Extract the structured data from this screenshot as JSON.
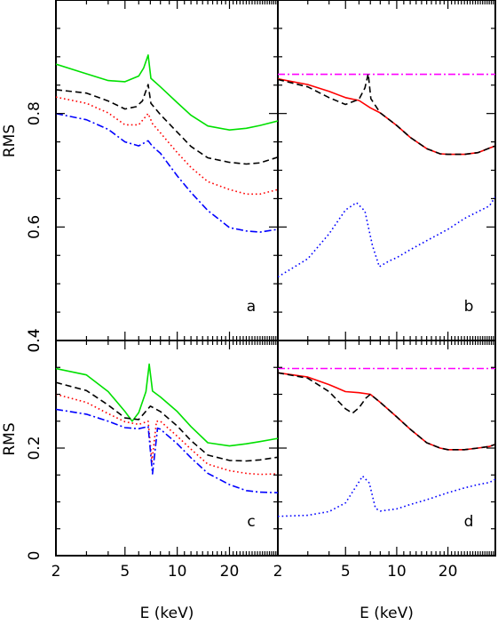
{
  "chart_data": [
    {
      "panel": "a",
      "type": "line",
      "ylabel": "RMS",
      "xlabel": "",
      "xscale": "log",
      "xlim": [
        2,
        38
      ],
      "ylim": [
        0.4,
        1.0
      ],
      "ytick_values": [
        0.4,
        0.6,
        0.8
      ],
      "ytick_labels": [
        "0.4",
        "0.6",
        "0.8"
      ],
      "xtick_labels": [],
      "series": [
        {
          "color": "#00e000",
          "style": "solid",
          "points": [
            [
              2,
              0.887
            ],
            [
              3,
              0.87
            ],
            [
              4,
              0.858
            ],
            [
              5,
              0.856
            ],
            [
              6,
              0.866
            ],
            [
              6.4,
              0.88
            ],
            [
              6.8,
              0.903
            ],
            [
              7.05,
              0.862
            ],
            [
              8,
              0.847
            ],
            [
              10,
              0.819
            ],
            [
              12,
              0.797
            ],
            [
              15,
              0.778
            ],
            [
              20,
              0.771
            ],
            [
              25,
              0.774
            ],
            [
              30,
              0.779
            ],
            [
              38,
              0.787
            ]
          ]
        },
        {
          "color": "#000000",
          "style": "dashed",
          "points": [
            [
              2,
              0.842
            ],
            [
              3,
              0.836
            ],
            [
              4,
              0.822
            ],
            [
              5,
              0.808
            ],
            [
              5.8,
              0.812
            ],
            [
              6.3,
              0.822
            ],
            [
              6.8,
              0.851
            ],
            [
              7.05,
              0.818
            ],
            [
              8,
              0.798
            ],
            [
              10,
              0.767
            ],
            [
              12,
              0.742
            ],
            [
              15,
              0.722
            ],
            [
              20,
              0.714
            ],
            [
              25,
              0.711
            ],
            [
              30,
              0.713
            ],
            [
              38,
              0.723
            ]
          ]
        },
        {
          "color": "#ff0000",
          "style": "dotted",
          "points": [
            [
              2,
              0.829
            ],
            [
              3,
              0.818
            ],
            [
              4,
              0.801
            ],
            [
              5,
              0.78
            ],
            [
              6,
              0.78
            ],
            [
              6.8,
              0.8
            ],
            [
              7.2,
              0.782
            ],
            [
              8,
              0.766
            ],
            [
              10,
              0.731
            ],
            [
              12,
              0.705
            ],
            [
              15,
              0.68
            ],
            [
              20,
              0.666
            ],
            [
              25,
              0.658
            ],
            [
              30,
              0.658
            ],
            [
              38,
              0.666
            ]
          ]
        },
        {
          "color": "#0000ff",
          "style": "dashdot",
          "points": [
            [
              2,
              0.8
            ],
            [
              3,
              0.789
            ],
            [
              4,
              0.772
            ],
            [
              5,
              0.75
            ],
            [
              6,
              0.743
            ],
            [
              6.8,
              0.752
            ],
            [
              7.2,
              0.742
            ],
            [
              8,
              0.73
            ],
            [
              10,
              0.69
            ],
            [
              12,
              0.661
            ],
            [
              15,
              0.629
            ],
            [
              20,
              0.599
            ],
            [
              25,
              0.593
            ],
            [
              30,
              0.591
            ],
            [
              38,
              0.596
            ]
          ]
        }
      ]
    },
    {
      "panel": "b",
      "type": "line",
      "ylabel": "",
      "xlabel": "",
      "xscale": "log",
      "xlim": [
        2,
        38
      ],
      "ylim": [
        0.4,
        1.0
      ],
      "ytick_labels": [],
      "xtick_labels": [],
      "series": [
        {
          "color": "#ff00ff",
          "style": "dashdot",
          "points": [
            [
              2,
              0.869
            ],
            [
              38,
              0.869
            ]
          ]
        },
        {
          "color": "#ff0000",
          "style": "solid",
          "points": [
            [
              2,
              0.861
            ],
            [
              3,
              0.851
            ],
            [
              4,
              0.839
            ],
            [
              5,
              0.828
            ],
            [
              6,
              0.823
            ],
            [
              7,
              0.81
            ],
            [
              8,
              0.801
            ],
            [
              10,
              0.779
            ],
            [
              12,
              0.758
            ],
            [
              15,
              0.738
            ],
            [
              18,
              0.729
            ],
            [
              20,
              0.728
            ],
            [
              25,
              0.728
            ],
            [
              30,
              0.731
            ],
            [
              35,
              0.739
            ],
            [
              38,
              0.743
            ]
          ]
        },
        {
          "color": "#000000",
          "style": "dashed",
          "points": [
            [
              2,
              0.86
            ],
            [
              3,
              0.847
            ],
            [
              4,
              0.828
            ],
            [
              5,
              0.816
            ],
            [
              6,
              0.825
            ],
            [
              6.5,
              0.845
            ],
            [
              6.8,
              0.87
            ],
            [
              7.05,
              0.826
            ],
            [
              8,
              0.801
            ],
            [
              10,
              0.779
            ],
            [
              12,
              0.758
            ],
            [
              15,
              0.738
            ],
            [
              18,
              0.729
            ],
            [
              20,
              0.728
            ],
            [
              25,
              0.728
            ],
            [
              30,
              0.731
            ],
            [
              35,
              0.739
            ],
            [
              38,
              0.743
            ]
          ]
        },
        {
          "color": "#0000ff",
          "style": "dotted",
          "points": [
            [
              2,
              0.512
            ],
            [
              3,
              0.544
            ],
            [
              4,
              0.588
            ],
            [
              5,
              0.63
            ],
            [
              5.8,
              0.643
            ],
            [
              6.5,
              0.628
            ],
            [
              7.2,
              0.567
            ],
            [
              7.9,
              0.53
            ],
            [
              9,
              0.54
            ],
            [
              10,
              0.546
            ],
            [
              12,
              0.56
            ],
            [
              15,
              0.576
            ],
            [
              20,
              0.596
            ],
            [
              25,
              0.615
            ],
            [
              30,
              0.627
            ],
            [
              35,
              0.637
            ],
            [
              38,
              0.653
            ]
          ]
        }
      ]
    },
    {
      "panel": "c",
      "type": "line",
      "ylabel": "RMS",
      "xlabel": "E (keV)",
      "xscale": "log",
      "xlim": [
        2,
        38
      ],
      "ylim": [
        0,
        0.4
      ],
      "ytick_values": [
        0,
        0.2,
        0.4
      ],
      "ytick_labels": [
        "0",
        "0.2",
        "0.4"
      ],
      "xtick_values": [
        2,
        5,
        10,
        20
      ],
      "xtick_labels": [
        "2",
        "5",
        "10",
        "20"
      ],
      "series": [
        {
          "color": "#00e000",
          "style": "solid",
          "points": [
            [
              2,
              0.348
            ],
            [
              3,
              0.336
            ],
            [
              4,
              0.305
            ],
            [
              5,
              0.268
            ],
            [
              5.5,
              0.25
            ],
            [
              6,
              0.266
            ],
            [
              6.6,
              0.305
            ],
            [
              6.9,
              0.356
            ],
            [
              7.2,
              0.306
            ],
            [
              8,
              0.295
            ],
            [
              10,
              0.268
            ],
            [
              12,
              0.24
            ],
            [
              15,
              0.21
            ],
            [
              20,
              0.204
            ],
            [
              25,
              0.208
            ],
            [
              30,
              0.212
            ],
            [
              38,
              0.218
            ]
          ]
        },
        {
          "color": "#000000",
          "style": "dashed",
          "points": [
            [
              2,
              0.322
            ],
            [
              3,
              0.307
            ],
            [
              4,
              0.28
            ],
            [
              5,
              0.256
            ],
            [
              6,
              0.253
            ],
            [
              7,
              0.278
            ],
            [
              8,
              0.268
            ],
            [
              10,
              0.241
            ],
            [
              12,
              0.214
            ],
            [
              15,
              0.187
            ],
            [
              20,
              0.177
            ],
            [
              25,
              0.176
            ],
            [
              30,
              0.178
            ],
            [
              38,
              0.183
            ]
          ]
        },
        {
          "color": "#ff0000",
          "style": "dotted",
          "points": [
            [
              2,
              0.3
            ],
            [
              3,
              0.285
            ],
            [
              4,
              0.264
            ],
            [
              5,
              0.249
            ],
            [
              6,
              0.244
            ],
            [
              6.8,
              0.25
            ],
            [
              7.15,
              0.175
            ],
            [
              7.6,
              0.25
            ],
            [
              8,
              0.25
            ],
            [
              10,
              0.222
            ],
            [
              12,
              0.198
            ],
            [
              15,
              0.17
            ],
            [
              20,
              0.158
            ],
            [
              25,
              0.153
            ],
            [
              30,
              0.151
            ],
            [
              38,
              0.152
            ]
          ]
        },
        {
          "color": "#0000ff",
          "style": "dashdot",
          "points": [
            [
              2,
              0.272
            ],
            [
              3,
              0.263
            ],
            [
              4,
              0.25
            ],
            [
              5,
              0.238
            ],
            [
              6,
              0.236
            ],
            [
              6.8,
              0.24
            ],
            [
              7.2,
              0.152
            ],
            [
              7.7,
              0.237
            ],
            [
              8,
              0.235
            ],
            [
              10,
              0.208
            ],
            [
              12,
              0.182
            ],
            [
              15,
              0.153
            ],
            [
              20,
              0.132
            ],
            [
              25,
              0.121
            ],
            [
              30,
              0.118
            ],
            [
              38,
              0.117
            ]
          ]
        }
      ]
    },
    {
      "panel": "d",
      "type": "line",
      "ylabel": "",
      "xlabel": "E (keV)",
      "xscale": "log",
      "xlim": [
        2,
        38
      ],
      "ylim": [
        0,
        0.4
      ],
      "ytick_labels": [],
      "xtick_values": [
        2,
        5,
        10,
        20
      ],
      "xtick_labels": [
        "2",
        "5",
        "10",
        "20"
      ],
      "series": [
        {
          "color": "#ff00ff",
          "style": "dashdot",
          "points": [
            [
              2,
              0.348
            ],
            [
              38,
              0.348
            ]
          ]
        },
        {
          "color": "#ff0000",
          "style": "solid",
          "points": [
            [
              2,
              0.34
            ],
            [
              3,
              0.332
            ],
            [
              4,
              0.318
            ],
            [
              5,
              0.305
            ],
            [
              6,
              0.303
            ],
            [
              7,
              0.3
            ],
            [
              8,
              0.285
            ],
            [
              10,
              0.258
            ],
            [
              12,
              0.235
            ],
            [
              15,
              0.21
            ],
            [
              18,
              0.2
            ],
            [
              20,
              0.197
            ],
            [
              25,
              0.197
            ],
            [
              30,
              0.2
            ],
            [
              35,
              0.203
            ],
            [
              38,
              0.207
            ]
          ]
        },
        {
          "color": "#000000",
          "style": "dashed",
          "points": [
            [
              2,
              0.34
            ],
            [
              3,
              0.33
            ],
            [
              4,
              0.305
            ],
            [
              5,
              0.273
            ],
            [
              5.5,
              0.265
            ],
            [
              6,
              0.275
            ],
            [
              6.6,
              0.293
            ],
            [
              7,
              0.3
            ],
            [
              8,
              0.285
            ],
            [
              10,
              0.258
            ],
            [
              12,
              0.235
            ],
            [
              15,
              0.21
            ],
            [
              18,
              0.2
            ],
            [
              20,
              0.197
            ],
            [
              25,
              0.197
            ],
            [
              30,
              0.2
            ],
            [
              35,
              0.203
            ],
            [
              38,
              0.207
            ]
          ]
        },
        {
          "color": "#0000ff",
          "style": "dotted",
          "points": [
            [
              2,
              0.073
            ],
            [
              3,
              0.075
            ],
            [
              4,
              0.082
            ],
            [
              5,
              0.098
            ],
            [
              5.8,
              0.13
            ],
            [
              6.3,
              0.148
            ],
            [
              6.9,
              0.135
            ],
            [
              7.5,
              0.088
            ],
            [
              8,
              0.083
            ],
            [
              10,
              0.087
            ],
            [
              12,
              0.095
            ],
            [
              15,
              0.104
            ],
            [
              20,
              0.117
            ],
            [
              25,
              0.126
            ],
            [
              30,
              0.132
            ],
            [
              35,
              0.136
            ],
            [
              38,
              0.142
            ]
          ]
        }
      ]
    }
  ],
  "panel_labels": {
    "a": "a",
    "b": "b",
    "c": "c",
    "d": "d"
  }
}
